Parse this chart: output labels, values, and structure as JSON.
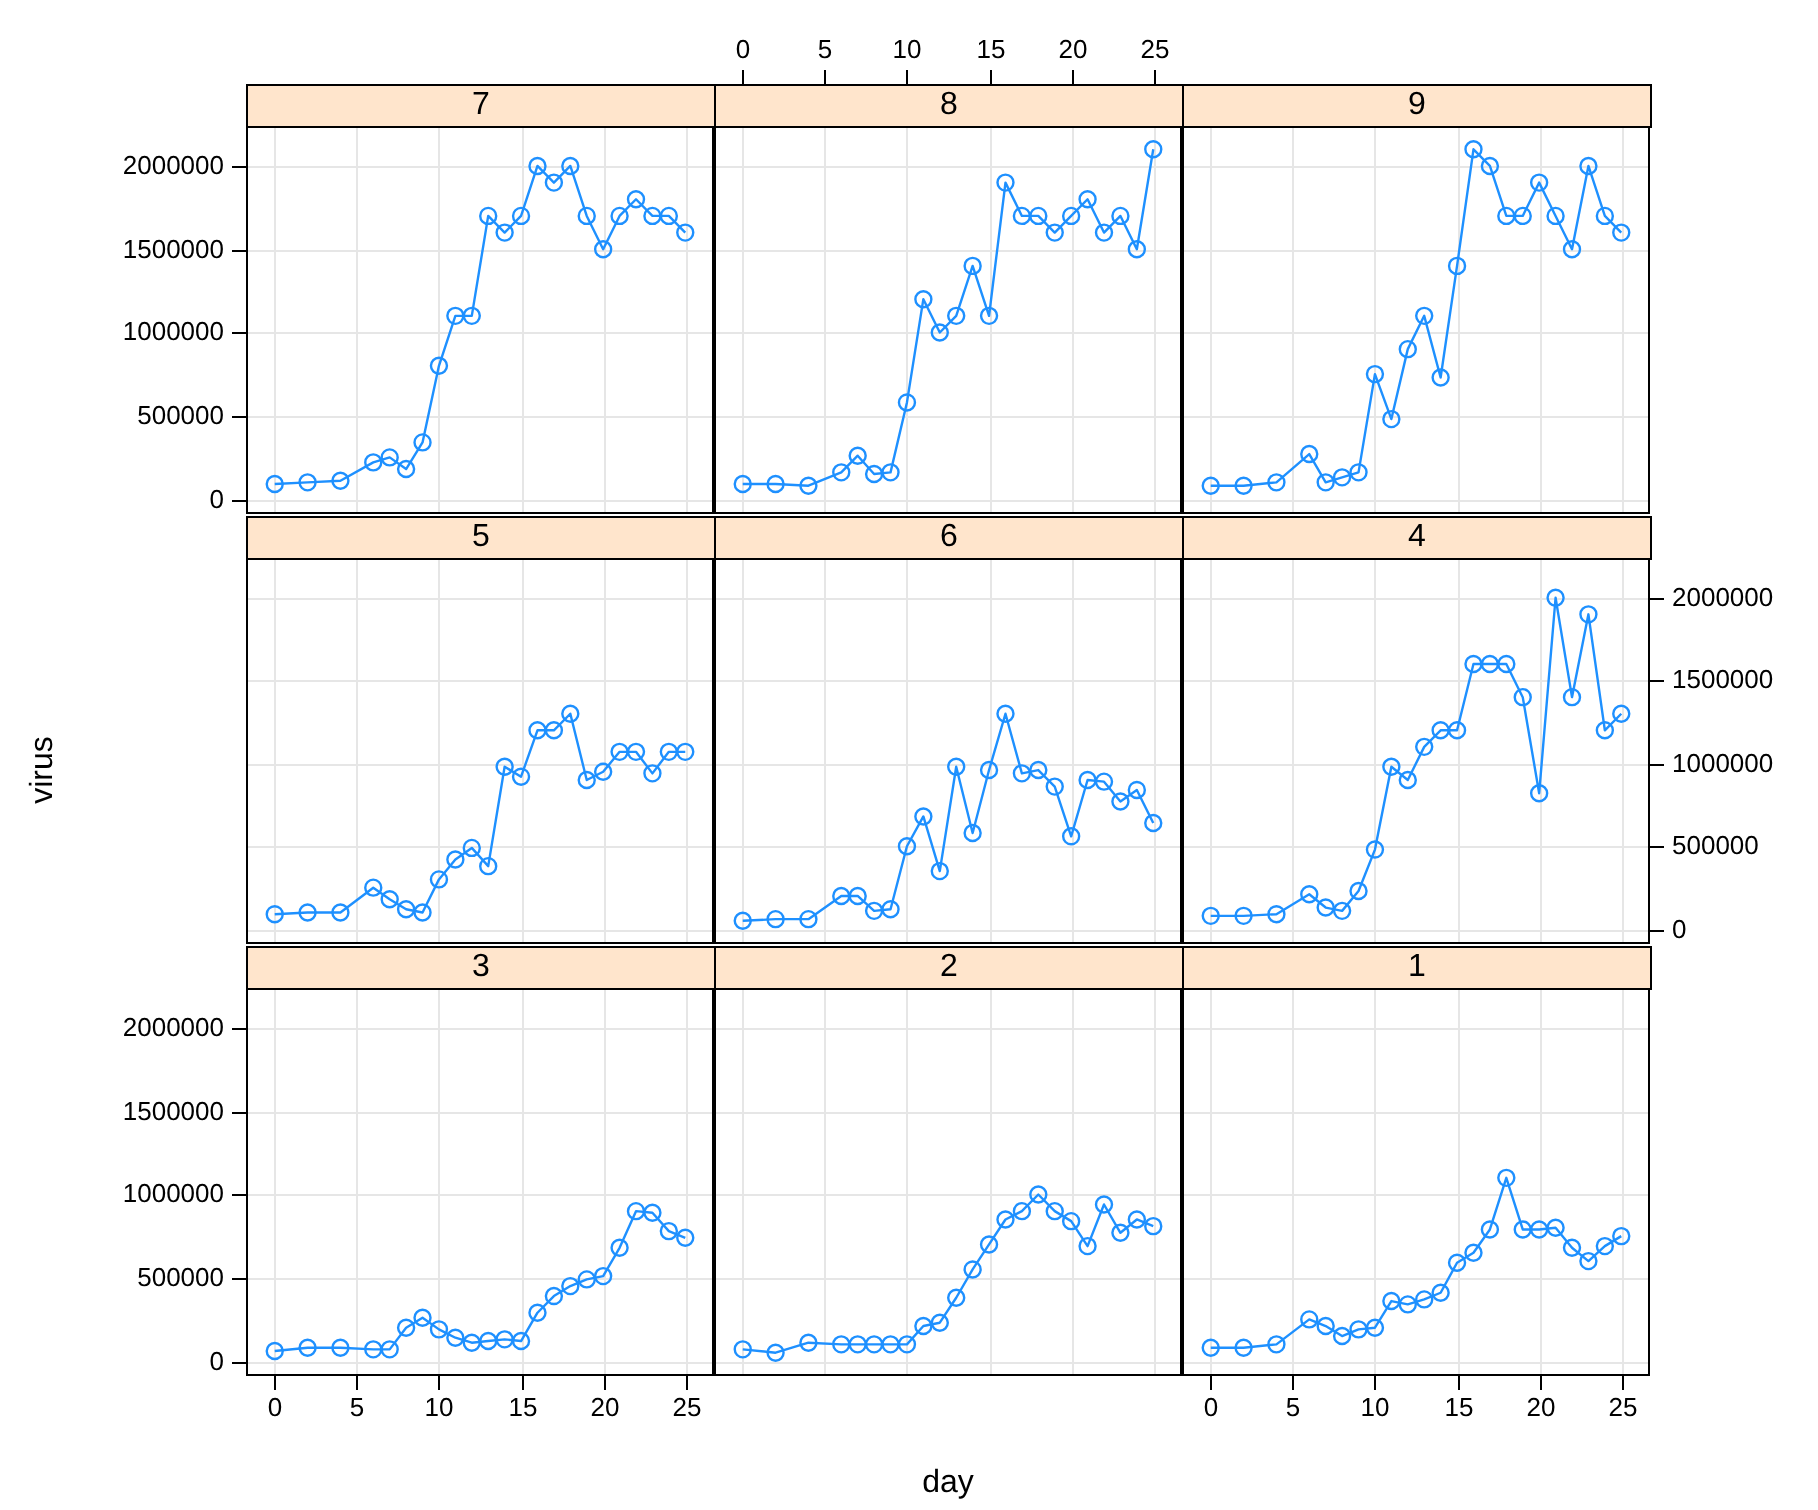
{
  "chart_data": [
    {
      "type": "line",
      "title": "7",
      "x": [
        0,
        2,
        4,
        6,
        7,
        8,
        9,
        10,
        11,
        12,
        13,
        14,
        15,
        16,
        17,
        18,
        19,
        20,
        21,
        22,
        23,
        24,
        25
      ],
      "values": [
        90000,
        100000,
        110000,
        220000,
        250000,
        180000,
        340000,
        800000,
        1100000,
        1100000,
        1700000,
        1600000,
        1700000,
        2000000,
        1900000,
        2000000,
        1700000,
        1500000,
        1700000,
        1800000,
        1700000,
        1700000,
        1600000
      ],
      "color": "#1e90ff",
      "marker": "circle",
      "xlim": [
        -1.75,
        26.75
      ],
      "ylim": [
        -90000,
        2240000
      ],
      "xticks": [
        0,
        5,
        10,
        15,
        20,
        25
      ],
      "yticks": [
        0,
        500000,
        1000000,
        1500000,
        2000000
      ],
      "grid": true,
      "tick_labels": "y"
    },
    {
      "type": "line",
      "title": "8",
      "x": [
        0,
        2,
        4,
        6,
        7,
        8,
        9,
        10,
        11,
        12,
        13,
        14,
        15,
        16,
        17,
        18,
        19,
        20,
        21,
        22,
        23,
        24,
        25
      ],
      "values": [
        90000,
        90000,
        80000,
        160000,
        260000,
        150000,
        160000,
        580000,
        1200000,
        1000000,
        1100000,
        1400000,
        1100000,
        1900000,
        1700000,
        1700000,
        1600000,
        1700000,
        1800000,
        1600000,
        1700000,
        1500000,
        2100000
      ],
      "color": "#1e90ff",
      "marker": "circle",
      "xlim": [
        -1.75,
        26.75
      ],
      "ylim": [
        -90000,
        2240000
      ],
      "xticks": [
        0,
        5,
        10,
        15,
        20,
        25
      ],
      "yticks": [
        0,
        500000,
        1000000,
        1500000,
        2000000
      ],
      "grid": true,
      "tick_labels": "x"
    },
    {
      "type": "line",
      "title": "9",
      "x": [
        0,
        2,
        4,
        6,
        7,
        8,
        9,
        10,
        11,
        12,
        13,
        14,
        15,
        16,
        17,
        18,
        19,
        20,
        21,
        22,
        23,
        24,
        25
      ],
      "values": [
        80000,
        80000,
        100000,
        270000,
        100000,
        130000,
        160000,
        750000,
        480000,
        900000,
        1100000,
        730000,
        1400000,
        2100000,
        2000000,
        1700000,
        1700000,
        1900000,
        1700000,
        1500000,
        2000000,
        1700000,
        1600000
      ],
      "color": "#1e90ff",
      "marker": "circle",
      "xlim": [
        -1.75,
        26.75
      ],
      "ylim": [
        -90000,
        2240000
      ],
      "xticks": [
        0,
        5,
        10,
        15,
        20,
        25
      ],
      "yticks": [
        0,
        500000,
        1000000,
        1500000,
        2000000
      ],
      "grid": true,
      "tick_labels": false
    },
    {
      "type": "line",
      "title": "5",
      "ylabel": "virus",
      "x": [
        0,
        2,
        4,
        6,
        7,
        8,
        9,
        10,
        11,
        12,
        13,
        14,
        15,
        16,
        17,
        18,
        19,
        20,
        21,
        22,
        23,
        24,
        25
      ],
      "values": [
        90000,
        100000,
        100000,
        250000,
        180000,
        120000,
        100000,
        300000,
        420000,
        490000,
        380000,
        980000,
        920000,
        1200000,
        1200000,
        1300000,
        900000,
        950000,
        1070000,
        1070000,
        940000,
        1070000,
        1070000
      ],
      "color": "#1e90ff",
      "marker": "circle",
      "xlim": [
        -1.75,
        26.75
      ],
      "ylim": [
        -90000,
        2240000
      ],
      "xticks": [
        0,
        5,
        10,
        15,
        20,
        25
      ],
      "yticks": [
        0,
        500000,
        1000000,
        1500000,
        2000000
      ],
      "grid": true,
      "tick_labels": false
    },
    {
      "type": "line",
      "title": "6",
      "x": [
        0,
        2,
        4,
        6,
        7,
        8,
        9,
        10,
        11,
        12,
        13,
        14,
        15,
        16,
        17,
        18,
        19,
        20,
        21,
        22,
        23,
        24,
        25
      ],
      "values": [
        50000,
        60000,
        60000,
        200000,
        200000,
        110000,
        120000,
        500000,
        680000,
        350000,
        980000,
        580000,
        960000,
        1300000,
        940000,
        960000,
        860000,
        560000,
        900000,
        890000,
        770000,
        840000,
        640000
      ],
      "color": "#1e90ff",
      "marker": "circle",
      "xlim": [
        -1.75,
        26.75
      ],
      "ylim": [
        -90000,
        2240000
      ],
      "xticks": [
        0,
        5,
        10,
        15,
        20,
        25
      ],
      "yticks": [
        0,
        500000,
        1000000,
        1500000,
        2000000
      ],
      "grid": true,
      "tick_labels": false
    },
    {
      "type": "line",
      "title": "4",
      "x": [
        0,
        2,
        4,
        6,
        7,
        8,
        9,
        10,
        11,
        12,
        13,
        14,
        15,
        16,
        17,
        18,
        19,
        20,
        21,
        22,
        23,
        24,
        25
      ],
      "values": [
        80000,
        80000,
        90000,
        210000,
        130000,
        110000,
        230000,
        480000,
        980000,
        900000,
        1100000,
        1200000,
        1200000,
        1600000,
        1600000,
        1600000,
        1400000,
        820000,
        2000000,
        1400000,
        1900000,
        1200000,
        1300000
      ],
      "color": "#1e90ff",
      "marker": "circle",
      "xlim": [
        -1.75,
        26.75
      ],
      "ylim": [
        -90000,
        2240000
      ],
      "xticks": [
        0,
        5,
        10,
        15,
        20,
        25
      ],
      "yticks": [
        0,
        500000,
        1000000,
        1500000,
        2000000
      ],
      "grid": true,
      "tick_labels": "y"
    },
    {
      "type": "line",
      "title": "3",
      "x": [
        0,
        2,
        4,
        6,
        7,
        8,
        9,
        10,
        11,
        12,
        13,
        14,
        15,
        16,
        17,
        18,
        19,
        20,
        21,
        22,
        23,
        24,
        25
      ],
      "values": [
        60000,
        80000,
        80000,
        70000,
        70000,
        200000,
        260000,
        190000,
        140000,
        110000,
        120000,
        130000,
        120000,
        290000,
        390000,
        450000,
        490000,
        510000,
        680000,
        900000,
        890000,
        780000,
        740000
      ],
      "color": "#1e90ff",
      "marker": "circle",
      "xlim": [
        -1.75,
        26.75
      ],
      "ylim": [
        -90000,
        2240000
      ],
      "xticks": [
        0,
        5,
        10,
        15,
        20,
        25
      ],
      "yticks": [
        0,
        500000,
        1000000,
        1500000,
        2000000
      ],
      "grid": true
    },
    {
      "type": "line",
      "title": "2",
      "xlabel": "day",
      "x": [
        0,
        2,
        4,
        6,
        7,
        8,
        9,
        10,
        11,
        12,
        13,
        14,
        15,
        16,
        17,
        18,
        19,
        20,
        21,
        22,
        23,
        24,
        25
      ],
      "values": [
        70000,
        50000,
        110000,
        100000,
        100000,
        100000,
        100000,
        100000,
        210000,
        230000,
        380000,
        550000,
        700000,
        850000,
        900000,
        1000000,
        900000,
        840000,
        690000,
        940000,
        770000,
        850000,
        810000
      ],
      "color": "#1e90ff",
      "marker": "circle",
      "xlim": [
        -1.75,
        26.75
      ],
      "ylim": [
        -90000,
        2240000
      ],
      "xticks": [
        0,
        5,
        10,
        15,
        20,
        25
      ],
      "yticks": [
        0,
        500000,
        1000000,
        1500000,
        2000000
      ],
      "grid": true,
      "tick_labels": false
    },
    {
      "type": "line",
      "title": "1",
      "x": [
        0,
        2,
        4,
        6,
        7,
        8,
        9,
        10,
        11,
        12,
        13,
        14,
        15,
        16,
        17,
        18,
        19,
        20,
        21,
        22,
        23,
        24,
        25
      ],
      "values": [
        80000,
        80000,
        100000,
        250000,
        210000,
        150000,
        190000,
        200000,
        360000,
        340000,
        370000,
        410000,
        590000,
        650000,
        790000,
        1100000,
        790000,
        790000,
        800000,
        680000,
        600000,
        690000,
        750000
      ],
      "color": "#1e90ff",
      "marker": "circle",
      "xlim": [
        -1.75,
        26.75
      ],
      "ylim": [
        -90000,
        2240000
      ],
      "xticks": [
        0,
        5,
        10,
        15,
        20,
        25
      ],
      "yticks": [
        0,
        500000,
        1000000,
        1500000,
        2000000
      ],
      "grid": true,
      "tick_labels": "x"
    }
  ]
}
